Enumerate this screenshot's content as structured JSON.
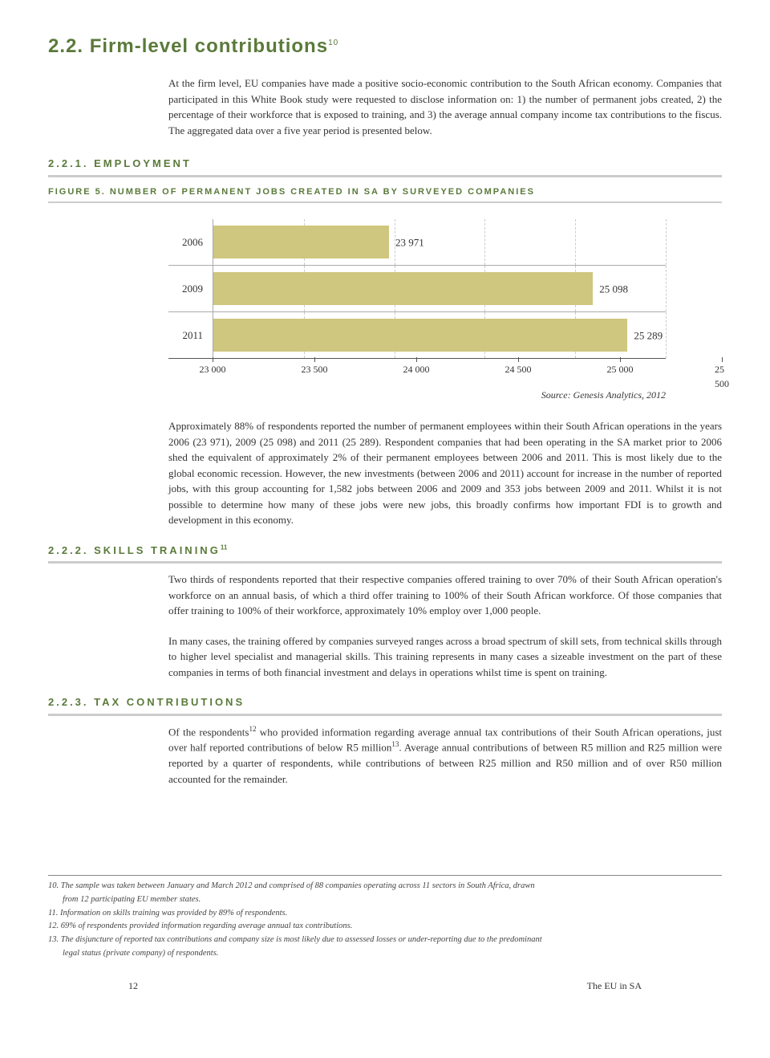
{
  "title": "2.2. Firm-level contributions",
  "title_footnote": "10",
  "intro": "At the firm level, EU companies have made a positive socio-economic contribution to the South African economy. Companies that participated in this White Book study were requested to disclose information on: 1) the number of permanent jobs created, 2) the percentage of their workforce that is exposed to training, and 3) the average annual company income tax contributions to the fiscus. The aggregated data over a five year period is presented below.",
  "s1_heading": "2.2.1. Employment",
  "fig_caption": "figure 5. number of permanent jobs created in sa by surveyed companies",
  "chart": {
    "type": "bar-horizontal",
    "bar_color": "#cfc67f",
    "grid_color": "#cccccc",
    "axis_color": "#555555",
    "background": "#ffffff",
    "x_min": 23000,
    "x_max": 25500,
    "tick_step": 500,
    "ticks": [
      "23 000",
      "23 500",
      "24 000",
      "24 500",
      "25 000",
      "25 500"
    ],
    "rows": [
      {
        "label": "2006",
        "value": 23971,
        "value_label": "23 971"
      },
      {
        "label": "2009",
        "value": 25098,
        "value_label": "25 098"
      },
      {
        "label": "2011",
        "value": 25289,
        "value_label": "25 289"
      }
    ]
  },
  "source": "Source: Genesis Analytics, 2012",
  "para1": "Approximately 88% of respondents reported the number of permanent employees within their South African operations in the years 2006 (23 971), 2009 (25 098) and 2011 (25 289). Respondent companies that had been operating in the SA market prior to 2006 shed the equivalent of approximately 2% of their permanent employees between 2006 and 2011. This is most likely due to the global economic recession. However, the new investments (between 2006 and 2011) account for increase in the number of reported jobs, with this group accounting for 1,582 jobs between 2006 and 2009 and 353 jobs between 2009 and 2011. Whilst it is not possible to determine how many of these jobs were new jobs, this broadly confirms how important FDI is to growth and development in this economy.",
  "s2_heading": "2.2.2. Skills training",
  "s2_footnote": "11",
  "para2": "Two thirds of respondents reported that their respective companies offered training to over 70% of their South African operation's workforce on an annual basis, of which a third offer training to 100% of their South African workforce. Of those companies that offer training to 100% of their workforce, approximately 10% employ over 1,000 people.",
  "para3": "In many cases, the training offered by companies surveyed ranges across a broad spectrum of skill sets, from technical skills through to higher level specialist and managerial skills. This training represents in many cases a sizeable investment on the part of these companies in terms of both financial investment and delays in operations whilst time is spent on training.",
  "s3_heading": "2.2.3. Tax contributions",
  "para4a": "Of the respondents",
  "para4_fn1": "12",
  "para4b": " who provided information regarding average annual tax contributions of their South African operations, just over half reported contributions of below R5 million",
  "para4_fn2": "13",
  "para4c": ". Average annual contributions of between R5 million and R25 million were reported by a quarter of respondents, while contributions of between R25 million and R50 million and of over R50 million accounted for the remainder.",
  "fn10a": "10. The sample was taken between January and March 2012 and comprised of 88 companies operating across 11 sectors in South Africa, drawn",
  "fn10b": "from 12 participating EU member states.",
  "fn11": "11. Information on skills training was provided by 89% of respondents.",
  "fn12": "12. 69% of respondents provided information regarding average annual tax contributions.",
  "fn13a": "13. The disjuncture of reported tax contributions and company size is most likely due to assessed losses or under-reporting due to the predominant",
  "fn13b": "legal status (private company) of respondents.",
  "page_num": "12",
  "footer_right": "The EU in SA"
}
